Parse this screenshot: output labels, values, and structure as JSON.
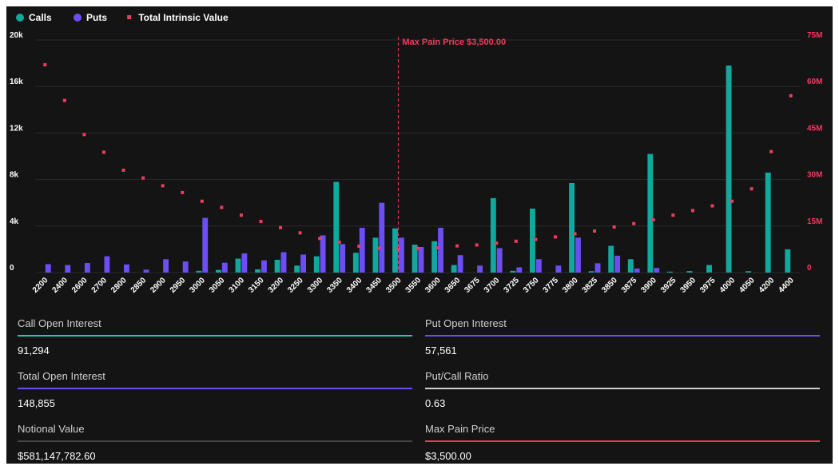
{
  "chart_data": {
    "type": "bar",
    "legend": [
      {
        "name": "Calls",
        "color": "#13a89e",
        "marker": "circle"
      },
      {
        "name": "Puts",
        "color": "#6c4ef2",
        "marker": "circle"
      },
      {
        "name": "Total Intrinsic Value",
        "color": "#f23a5e",
        "marker": "square"
      }
    ],
    "legend_position": "top-left",
    "categories": [
      "2200",
      "2400",
      "2600",
      "2700",
      "2800",
      "2850",
      "2900",
      "2950",
      "3000",
      "3050",
      "3100",
      "3150",
      "3200",
      "3250",
      "3300",
      "3350",
      "3400",
      "3450",
      "3500",
      "3550",
      "3600",
      "3650",
      "3675",
      "3700",
      "3725",
      "3750",
      "3775",
      "3800",
      "3825",
      "3850",
      "3875",
      "3900",
      "3925",
      "3950",
      "3975",
      "4000",
      "4050",
      "4200",
      "4400"
    ],
    "series": [
      {
        "name": "Calls",
        "type": "bar",
        "axis": "left",
        "values": [
          0,
          0,
          0,
          0,
          0,
          0,
          0,
          0,
          150,
          230,
          1200,
          280,
          1100,
          600,
          1400,
          7800,
          1700,
          3000,
          3800,
          2400,
          2700,
          650,
          0,
          6400,
          150,
          5500,
          0,
          7700,
          120,
          2300,
          1150,
          10200,
          80,
          130,
          650,
          17800,
          120,
          8600,
          2000
        ]
      },
      {
        "name": "Puts",
        "type": "bar",
        "axis": "left",
        "values": [
          720,
          650,
          820,
          1400,
          700,
          250,
          1150,
          950,
          4700,
          850,
          1650,
          1050,
          1750,
          1550,
          3200,
          2450,
          3850,
          6000,
          3000,
          2200,
          3850,
          1500,
          600,
          2100,
          450,
          1150,
          600,
          3000,
          800,
          1450,
          350,
          400,
          0,
          0,
          0,
          0,
          0,
          0,
          0
        ]
      },
      {
        "name": "Total Intrinsic Value",
        "type": "scatter",
        "axis": "right",
        "values": [
          67000000,
          55500000,
          44500000,
          38800000,
          33000000,
          30500000,
          28000000,
          25800000,
          23000000,
          21000000,
          18500000,
          16500000,
          14500000,
          12800000,
          11000000,
          9800000,
          8500000,
          7800000,
          7600000,
          7800000,
          8000000,
          8600000,
          8900000,
          9500000,
          10100000,
          10700000,
          11500000,
          12500000,
          13400000,
          14700000,
          15800000,
          17000000,
          18500000,
          20000000,
          21500000,
          23000000,
          27000000,
          39000000,
          57000000
        ]
      }
    ],
    "y_left": {
      "ticks": [
        "0",
        "4k",
        "8k",
        "12k",
        "16k",
        "20k"
      ],
      "range": [
        0,
        20000
      ]
    },
    "y_right": {
      "ticks": [
        "0",
        "15M",
        "30M",
        "45M",
        "60M",
        "75M"
      ],
      "range": [
        0,
        75000000
      ]
    },
    "annotation": {
      "label": "Max Pain Price $3,500.00",
      "category": "3500"
    },
    "grid": true,
    "colors": {
      "calls": "#13a89e",
      "puts": "#6c4ef2",
      "intrinsic": "#f23a5e",
      "axis_right": "#f23a5e"
    }
  },
  "stats": {
    "call_oi": {
      "label": "Call Open Interest",
      "value": "91,294",
      "color": "#1fc9bd"
    },
    "put_oi": {
      "label": "Put Open Interest",
      "value": "57,561",
      "color": "#6c4ef2"
    },
    "total_oi": {
      "label": "Total Open Interest",
      "value": "148,855",
      "color": "#6c4ef2"
    },
    "pc_ratio": {
      "label": "Put/Call Ratio",
      "value": "0.63",
      "color": "#cfcfcf"
    },
    "notional": {
      "label": "Notional Value",
      "value": "$581,147,782.60",
      "color": "#444444"
    },
    "max_pain": {
      "label": "Max Pain Price",
      "value": "$3,500.00",
      "color": "#f23a5e"
    }
  }
}
